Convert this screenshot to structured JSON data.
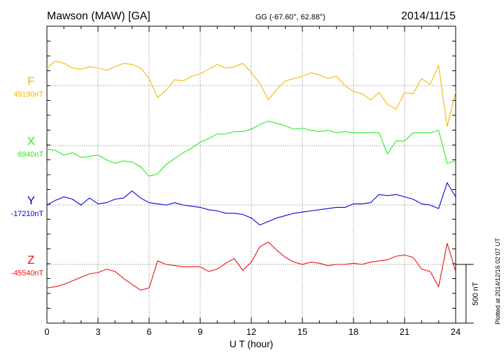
{
  "header": {
    "station": "Mawson (MAW)  [GA]",
    "coords": "GG (-67.60°,  62.88°)",
    "date": "2014/11/15"
  },
  "footer_note": "Plotted at 2014/12/16 02:07 UT",
  "scale_label": "500 nT",
  "chart_data": {
    "type": "line",
    "title": "Mawson (MAW)  [GA]",
    "xlabel": "U T (hour)",
    "ylabel": "",
    "xlim": [
      0,
      24
    ],
    "x_ticks": [
      "0",
      "3",
      "6",
      "9",
      "12",
      "15",
      "18",
      "21",
      "24"
    ],
    "scale_bar_nT": 500,
    "grid": true,
    "series": [
      {
        "name": "F",
        "baseline": "49190nT",
        "color": "#f5b800",
        "x": [
          0,
          0.5,
          1,
          1.5,
          2,
          2.5,
          3,
          3.5,
          4,
          4.5,
          5,
          5.5,
          6,
          6.5,
          7,
          7.5,
          8,
          8.5,
          9,
          9.5,
          10,
          10.5,
          11,
          11.5,
          12,
          12.5,
          13,
          13.5,
          14,
          14.5,
          15,
          15.5,
          16,
          16.5,
          17,
          17.5,
          18,
          18.5,
          19,
          19.5,
          20,
          20.5,
          21,
          21.5,
          22,
          22.5,
          23,
          23.5,
          24
        ],
        "values": [
          150,
          210,
          190,
          150,
          140,
          160,
          150,
          130,
          160,
          190,
          180,
          150,
          60,
          -100,
          -40,
          50,
          40,
          80,
          100,
          140,
          180,
          150,
          160,
          190,
          110,
          20,
          -120,
          -30,
          40,
          60,
          80,
          110,
          90,
          60,
          80,
          0,
          -50,
          -70,
          -120,
          -60,
          -160,
          -200,
          -60,
          -70,
          60,
          10,
          170,
          -350,
          -50
        ]
      },
      {
        "name": "X",
        "baseline": "6940nT",
        "color": "#22ee22",
        "x": [
          0,
          0.5,
          1,
          1.5,
          2,
          2.5,
          3,
          3.5,
          4,
          4.5,
          5,
          5.5,
          6,
          6.5,
          7,
          7.5,
          8,
          8.5,
          9,
          9.5,
          10,
          10.5,
          11,
          11.5,
          12,
          12.5,
          13,
          13.5,
          14,
          14.5,
          15,
          15.5,
          16,
          16.5,
          17,
          17.5,
          18,
          18.5,
          19,
          19.5,
          20,
          20.5,
          21,
          21.5,
          22,
          22.5,
          23,
          23.5,
          24
        ],
        "values": [
          -30,
          -40,
          -80,
          -60,
          -100,
          -90,
          -80,
          -120,
          -150,
          -130,
          -140,
          -180,
          -260,
          -240,
          -160,
          -110,
          -60,
          -20,
          30,
          60,
          100,
          100,
          120,
          120,
          140,
          180,
          210,
          190,
          170,
          140,
          150,
          130,
          120,
          130,
          110,
          120,
          110,
          110,
          110,
          110,
          -70,
          40,
          40,
          110,
          110,
          110,
          130,
          -150,
          -130
        ]
      },
      {
        "name": "Y",
        "baseline": "-17210nT",
        "color": "#0000dd",
        "x": [
          0,
          0.5,
          1,
          1.5,
          2,
          2.5,
          3,
          3.5,
          4,
          4.5,
          5,
          5.5,
          6,
          6.5,
          7,
          7.5,
          8,
          8.5,
          9,
          9.5,
          10,
          10.5,
          11,
          11.5,
          12,
          12.5,
          13,
          13.5,
          14,
          14.5,
          15,
          15.5,
          16,
          16.5,
          17,
          17.5,
          18,
          18.5,
          19,
          19.5,
          20,
          20.5,
          21,
          21.5,
          22,
          22.5,
          23,
          23.5,
          24
        ],
        "values": [
          0,
          40,
          70,
          50,
          0,
          60,
          10,
          20,
          50,
          60,
          120,
          60,
          20,
          10,
          0,
          20,
          0,
          -10,
          -20,
          -40,
          -50,
          -70,
          -70,
          -80,
          -110,
          -170,
          -140,
          -110,
          -90,
          -70,
          -60,
          -50,
          -40,
          -30,
          -20,
          -20,
          10,
          10,
          20,
          90,
          80,
          90,
          70,
          50,
          10,
          0,
          -30,
          190,
          70
        ]
      },
      {
        "name": "Z",
        "baseline": "-45540nT",
        "color": "#e81010",
        "x": [
          0,
          0.5,
          1,
          1.5,
          2,
          2.5,
          3,
          3.5,
          4,
          4.5,
          5,
          5.5,
          6,
          6.5,
          7,
          7.5,
          8,
          8.5,
          9,
          9.5,
          10,
          10.5,
          11,
          11.5,
          12,
          12.5,
          13,
          13.5,
          14,
          14.5,
          15,
          15.5,
          16,
          16.5,
          17,
          17.5,
          18,
          18.5,
          19,
          19.5,
          20,
          20.5,
          21,
          21.5,
          22,
          22.5,
          23,
          23.5,
          24
        ],
        "values": [
          -200,
          -190,
          -170,
          -140,
          -110,
          -80,
          -70,
          -40,
          -60,
          -120,
          -170,
          -220,
          -200,
          30,
          0,
          -10,
          -20,
          -20,
          -20,
          -60,
          -40,
          10,
          50,
          -50,
          20,
          150,
          190,
          120,
          60,
          20,
          0,
          20,
          10,
          -10,
          0,
          0,
          10,
          0,
          20,
          30,
          40,
          70,
          80,
          60,
          -40,
          -60,
          -190,
          180,
          -60
        ]
      }
    ]
  }
}
